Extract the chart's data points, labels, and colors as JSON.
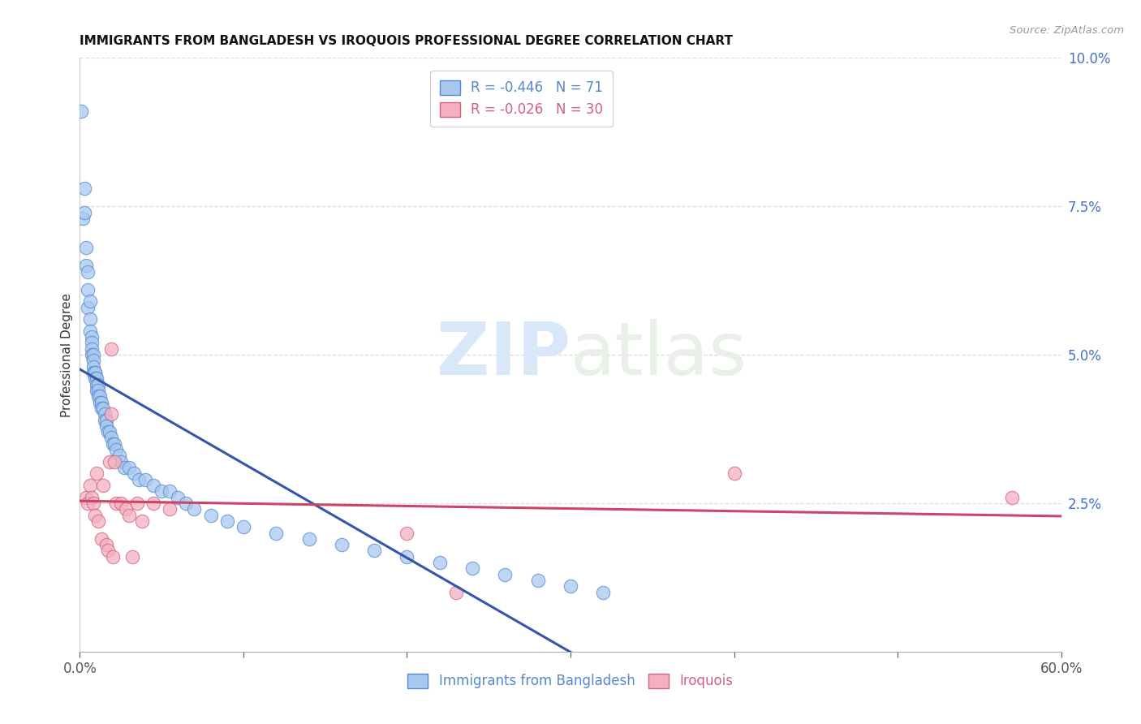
{
  "title": "IMMIGRANTS FROM BANGLADESH VS IROQUOIS PROFESSIONAL DEGREE CORRELATION CHART",
  "source": "Source: ZipAtlas.com",
  "xlabel_blue": "Immigrants from Bangladesh",
  "xlabel_pink": "Iroquois",
  "ylabel": "Professional Degree",
  "legend_blue_r": "-0.446",
  "legend_blue_n": "71",
  "legend_pink_r": "-0.026",
  "legend_pink_n": "30",
  "xlim": [
    0.0,
    0.6
  ],
  "ylim": [
    0.0,
    0.1
  ],
  "xtick_vals": [
    0.0,
    0.1,
    0.2,
    0.3,
    0.4,
    0.5,
    0.6
  ],
  "ytick_right": [
    0.025,
    0.05,
    0.075,
    0.1
  ],
  "background_color": "#ffffff",
  "blue_face": "#a8c8f0",
  "blue_edge": "#5588cc",
  "pink_face": "#f4b0c0",
  "pink_edge": "#d06080",
  "blue_line_color": "#3355aa",
  "pink_line_color": "#cc4466",
  "title_color": "#111111",
  "source_color": "#999999",
  "axis_label_color": "#333333",
  "tick_color_right": "#4472c4",
  "tick_color_bottom": "#555555",
  "grid_color": "#dddddd",
  "watermark_color": "#d8e8f8",
  "blue_scatter_x": [
    0.001,
    0.002,
    0.003,
    0.003,
    0.004,
    0.004,
    0.005,
    0.005,
    0.005,
    0.006,
    0.006,
    0.006,
    0.007,
    0.007,
    0.007,
    0.007,
    0.008,
    0.008,
    0.008,
    0.008,
    0.009,
    0.009,
    0.009,
    0.01,
    0.01,
    0.01,
    0.011,
    0.011,
    0.011,
    0.012,
    0.012,
    0.013,
    0.013,
    0.014,
    0.015,
    0.015,
    0.016,
    0.016,
    0.017,
    0.018,
    0.019,
    0.02,
    0.021,
    0.022,
    0.024,
    0.025,
    0.027,
    0.03,
    0.033,
    0.036,
    0.04,
    0.045,
    0.05,
    0.055,
    0.06,
    0.065,
    0.07,
    0.08,
    0.09,
    0.1,
    0.12,
    0.14,
    0.16,
    0.18,
    0.2,
    0.22,
    0.24,
    0.26,
    0.28,
    0.3,
    0.32
  ],
  "blue_scatter_y": [
    0.091,
    0.073,
    0.078,
    0.074,
    0.068,
    0.065,
    0.064,
    0.061,
    0.058,
    0.059,
    0.056,
    0.054,
    0.053,
    0.052,
    0.051,
    0.05,
    0.05,
    0.049,
    0.048,
    0.047,
    0.047,
    0.047,
    0.046,
    0.046,
    0.045,
    0.044,
    0.045,
    0.044,
    0.043,
    0.043,
    0.042,
    0.042,
    0.041,
    0.041,
    0.04,
    0.039,
    0.039,
    0.038,
    0.037,
    0.037,
    0.036,
    0.035,
    0.035,
    0.034,
    0.033,
    0.032,
    0.031,
    0.031,
    0.03,
    0.029,
    0.029,
    0.028,
    0.027,
    0.027,
    0.026,
    0.025,
    0.024,
    0.023,
    0.022,
    0.021,
    0.02,
    0.019,
    0.018,
    0.017,
    0.016,
    0.015,
    0.014,
    0.013,
    0.012,
    0.011,
    0.01
  ],
  "pink_scatter_x": [
    0.004,
    0.005,
    0.006,
    0.007,
    0.008,
    0.009,
    0.01,
    0.011,
    0.013,
    0.014,
    0.016,
    0.017,
    0.018,
    0.019,
    0.019,
    0.02,
    0.021,
    0.022,
    0.025,
    0.028,
    0.03,
    0.032,
    0.035,
    0.038,
    0.045,
    0.055,
    0.2,
    0.23,
    0.4,
    0.57
  ],
  "pink_scatter_y": [
    0.026,
    0.025,
    0.028,
    0.026,
    0.025,
    0.023,
    0.03,
    0.022,
    0.019,
    0.028,
    0.018,
    0.017,
    0.032,
    0.051,
    0.04,
    0.016,
    0.032,
    0.025,
    0.025,
    0.024,
    0.023,
    0.016,
    0.025,
    0.022,
    0.025,
    0.024,
    0.02,
    0.01,
    0.03,
    0.026
  ]
}
